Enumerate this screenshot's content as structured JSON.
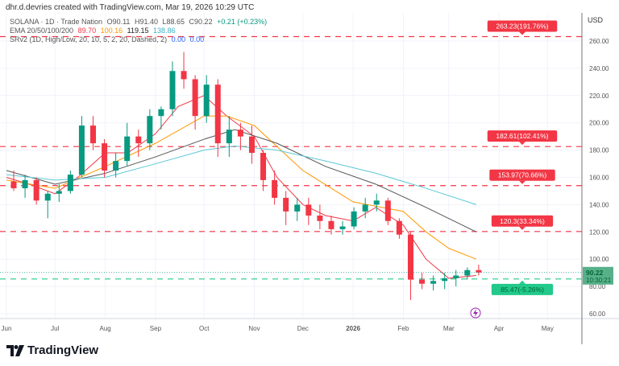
{
  "header": {
    "attribution": "dhr.d.devries created with TradingView.com, Mar 19, 2026 10:29 UTC"
  },
  "legend": {
    "symbol": "SOLANA · 1D · Trade Nation",
    "open": "O90.11",
    "high": "H91.40",
    "low": "L88.65",
    "close": "C90.22",
    "change": "+0.21 (+0.23%)",
    "ema_label": "EMA 20/50/100/200",
    "ema20": "89.70",
    "ema50": "100.16",
    "ema100": "119.15",
    "ema200": "138.86",
    "srv_label": "SRv2 (1D, High/Low, 20, 10, 5, 2, 20, Dashed, 2)",
    "srv_v1": "0.00",
    "srv_v2": "0.00"
  },
  "brand": "TradingView",
  "currency": "USD",
  "colors": {
    "up": "#089981",
    "down": "#f23645",
    "ema20": "#f23645",
    "ema50": "#ff9800",
    "ema100": "#555555",
    "ema200": "#5bc8d6",
    "resistance": "#f23645",
    "support": "#22c98a"
  },
  "chart_data": {
    "type": "candlestick",
    "symbol": "SOLANA",
    "ylim": [
      50,
      275
    ],
    "y_ticks": [
      "260.00",
      "240.00",
      "220.00",
      "200.00",
      "180.00",
      "160.00",
      "140.00",
      "120.00",
      "100.00",
      "80.00",
      "60.00"
    ],
    "x_ticks": [
      [
        "2025-06-01",
        "Jun"
      ],
      [
        "2025-07-01",
        "Jul"
      ],
      [
        "2025-08-01",
        "Aug"
      ],
      [
        "2025-09-01",
        "Sep"
      ],
      [
        "2025-10-01",
        "Oct"
      ],
      [
        "2025-11-01",
        "Nov"
      ],
      [
        "2025-12-01",
        "Dec"
      ],
      [
        "2026-01-01",
        "2026"
      ],
      [
        "2026-02-01",
        "Feb"
      ],
      [
        "2026-03-01",
        "Mar"
      ],
      [
        "2026-04-01",
        "Apr"
      ],
      [
        "2026-05-01",
        "May"
      ]
    ],
    "xlim": [
      "2025-05-29",
      "2026-05-23"
    ],
    "candles": [
      [
        "2025-06-02",
        157,
        165,
        150,
        152
      ],
      [
        "2025-06-09",
        152,
        162,
        145,
        158
      ],
      [
        "2025-06-16",
        158,
        160,
        140,
        143
      ],
      [
        "2025-06-23",
        143,
        150,
        130,
        148
      ],
      [
        "2025-06-30",
        148,
        155,
        142,
        150
      ],
      [
        "2025-07-07",
        150,
        165,
        148,
        162
      ],
      [
        "2025-07-14",
        162,
        205,
        160,
        198
      ],
      [
        "2025-07-21",
        198,
        205,
        180,
        185
      ],
      [
        "2025-07-28",
        185,
        188,
        160,
        165
      ],
      [
        "2025-08-04",
        165,
        178,
        160,
        172
      ],
      [
        "2025-08-11",
        172,
        200,
        168,
        190
      ],
      [
        "2025-08-18",
        190,
        195,
        175,
        185
      ],
      [
        "2025-08-25",
        185,
        210,
        180,
        205
      ],
      [
        "2025-09-01",
        205,
        212,
        195,
        210
      ],
      [
        "2025-09-08",
        210,
        245,
        205,
        238
      ],
      [
        "2025-09-15",
        238,
        252,
        225,
        232
      ],
      [
        "2025-09-22",
        232,
        235,
        195,
        205
      ],
      [
        "2025-09-29",
        205,
        235,
        200,
        228
      ],
      [
        "2025-10-06",
        228,
        232,
        175,
        185
      ],
      [
        "2025-10-13",
        185,
        205,
        175,
        195
      ],
      [
        "2025-10-20",
        195,
        200,
        180,
        190
      ],
      [
        "2025-10-27",
        190,
        198,
        170,
        178
      ],
      [
        "2025-11-03",
        178,
        180,
        150,
        158
      ],
      [
        "2025-11-10",
        158,
        165,
        140,
        145
      ],
      [
        "2025-11-17",
        145,
        150,
        125,
        135
      ],
      [
        "2025-11-24",
        135,
        145,
        128,
        140
      ],
      [
        "2025-12-01",
        140,
        145,
        125,
        132
      ],
      [
        "2025-12-08",
        132,
        140,
        122,
        128
      ],
      [
        "2025-12-15",
        128,
        132,
        118,
        122
      ],
      [
        "2025-12-22",
        122,
        128,
        118,
        124
      ],
      [
        "2025-12-29",
        124,
        138,
        122,
        135
      ],
      [
        "2026-01-05",
        135,
        145,
        130,
        140
      ],
      [
        "2026-01-12",
        140,
        148,
        135,
        143
      ],
      [
        "2026-01-19",
        143,
        145,
        125,
        128
      ],
      [
        "2026-01-26",
        128,
        130,
        115,
        118
      ],
      [
        "2026-02-02",
        118,
        120,
        70,
        85
      ],
      [
        "2026-02-09",
        85,
        90,
        78,
        82
      ],
      [
        "2026-02-16",
        82,
        88,
        77,
        84
      ],
      [
        "2026-02-23",
        84,
        90,
        78,
        86
      ],
      [
        "2026-03-02",
        86,
        92,
        80,
        88
      ],
      [
        "2026-03-09",
        88,
        94,
        85,
        92
      ],
      [
        "2026-03-16",
        92,
        96,
        88,
        90.22
      ]
    ],
    "ema": [
      {
        "name": "EMA 20",
        "color": "#f23645",
        "points": [
          [
            "2025-06-01",
            160
          ],
          [
            "2025-06-15",
            155
          ],
          [
            "2025-07-01",
            148
          ],
          [
            "2025-07-15",
            160
          ],
          [
            "2025-08-01",
            178
          ],
          [
            "2025-08-15",
            178
          ],
          [
            "2025-09-01",
            192
          ],
          [
            "2025-09-15",
            212
          ],
          [
            "2025-10-01",
            220
          ],
          [
            "2025-10-15",
            205
          ],
          [
            "2025-11-01",
            190
          ],
          [
            "2025-11-15",
            160
          ],
          [
            "2025-12-01",
            140
          ],
          [
            "2025-12-15",
            132
          ],
          [
            "2026-01-01",
            128
          ],
          [
            "2026-01-15",
            138
          ],
          [
            "2026-02-01",
            125
          ],
          [
            "2026-02-15",
            100
          ],
          [
            "2026-03-01",
            86
          ],
          [
            "2026-03-18",
            88
          ]
        ]
      },
      {
        "name": "EMA 50",
        "color": "#ff9800",
        "points": [
          [
            "2025-06-01",
            158
          ],
          [
            "2025-07-01",
            152
          ],
          [
            "2025-08-01",
            168
          ],
          [
            "2025-09-01",
            185
          ],
          [
            "2025-10-01",
            205
          ],
          [
            "2025-10-15",
            205
          ],
          [
            "2025-11-01",
            198
          ],
          [
            "2025-12-01",
            165
          ],
          [
            "2026-01-01",
            142
          ],
          [
            "2026-02-01",
            135
          ],
          [
            "2026-02-15",
            120
          ],
          [
            "2026-03-01",
            108
          ],
          [
            "2026-03-18",
            100
          ]
        ]
      },
      {
        "name": "EMA 100",
        "color": "#555555",
        "points": [
          [
            "2025-06-01",
            165
          ],
          [
            "2025-07-01",
            155
          ],
          [
            "2025-08-01",
            163
          ],
          [
            "2025-09-01",
            175
          ],
          [
            "2025-10-01",
            188
          ],
          [
            "2025-10-20",
            195
          ],
          [
            "2025-11-15",
            185
          ],
          [
            "2025-12-15",
            168
          ],
          [
            "2026-01-15",
            155
          ],
          [
            "2026-02-15",
            138
          ],
          [
            "2026-03-18",
            120
          ]
        ]
      },
      {
        "name": "EMA 200",
        "color": "#5bc8d6",
        "points": [
          [
            "2025-06-01",
            162
          ],
          [
            "2025-07-01",
            158
          ],
          [
            "2025-08-01",
            160
          ],
          [
            "2025-09-01",
            170
          ],
          [
            "2025-10-01",
            180
          ],
          [
            "2025-10-20",
            183
          ],
          [
            "2025-11-15",
            180
          ],
          [
            "2025-12-15",
            172
          ],
          [
            "2026-01-15",
            163
          ],
          [
            "2026-02-15",
            152
          ],
          [
            "2026-03-18",
            140
          ]
        ]
      }
    ],
    "levels": [
      {
        "value": 263.23,
        "label": "263.23(191.76%)",
        "kind": "resistance"
      },
      {
        "value": 182.61,
        "label": "182.61(102.41%)",
        "kind": "resistance"
      },
      {
        "value": 153.97,
        "label": "153.97(70.66%)",
        "kind": "resistance"
      },
      {
        "value": 120.3,
        "label": "120.3(33.34%)",
        "kind": "resistance"
      },
      {
        "value": 85.47,
        "label": "85.47(-5.26%)",
        "kind": "support"
      }
    ],
    "last_price": {
      "value": 90.22,
      "label": "90.22",
      "countdown": "10:30:21"
    }
  }
}
